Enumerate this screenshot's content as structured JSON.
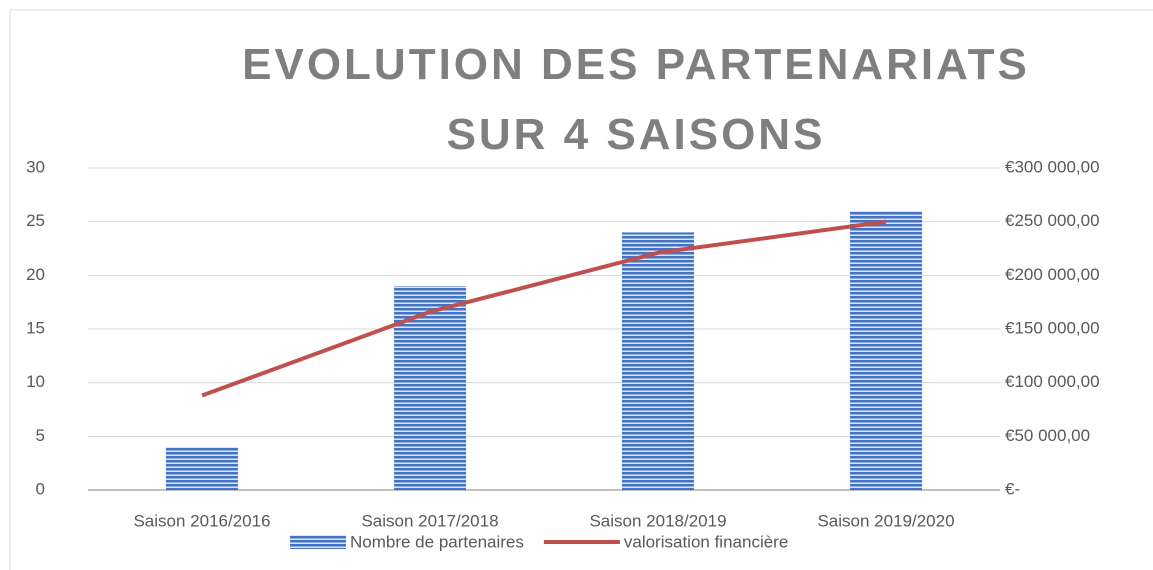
{
  "chart_data": {
    "type": "bar_line",
    "title": "EVOLUTION DES PARTENARIATS SUR 4 SAISONS",
    "categories": [
      "Saison 2016/2016",
      "Saison 2017/2018",
      "Saison 2018/2019",
      "Saison 2019/2020"
    ],
    "series": [
      {
        "name": "Nombre de partenaires",
        "type": "bar",
        "color": "#4472c4",
        "values": [
          4,
          19,
          24,
          26
        ]
      },
      {
        "name": "valorisation financière",
        "type": "line",
        "color": "#c0504d",
        "axis": "y2",
        "values": [
          88000,
          166000,
          221000,
          250000
        ]
      }
    ],
    "ylim": [
      0,
      30
    ],
    "yticks": [
      0,
      5,
      10,
      15,
      20,
      25,
      30
    ],
    "y2lim": [
      0,
      300000
    ],
    "y2ticks": [
      {
        "value": 0,
        "label": "€-"
      },
      {
        "value": 50000,
        "label": "€50 000,00"
      },
      {
        "value": 100000,
        "label": "€100 000,00"
      },
      {
        "value": 150000,
        "label": "€150 000,00"
      },
      {
        "value": 200000,
        "label": "€200 000,00"
      },
      {
        "value": 250000,
        "label": "€250 000,00"
      },
      {
        "value": 300000,
        "label": "€300 000,00"
      }
    ],
    "grid": true,
    "legend": "bottom"
  }
}
